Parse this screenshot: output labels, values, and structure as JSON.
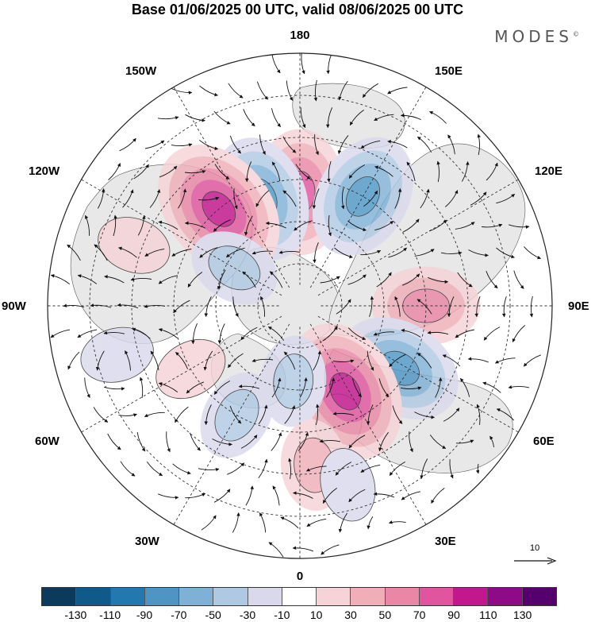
{
  "title": "Base 01/06/2025 00 UTC, valid 08/06/2025 00 UTC",
  "brand": "MODES",
  "brand_mark": "©",
  "longitude_labels": {
    "top": "180",
    "bottom": "0",
    "left": "90W",
    "right": "90E",
    "upper_left_1": "150W",
    "upper_left_2": "120W",
    "lower_left_1": "60W",
    "lower_left_2": "30W",
    "upper_right_1": "150E",
    "upper_right_2": "120E",
    "lower_right_1": "60E",
    "lower_right_2": "30E"
  },
  "reference_vector": {
    "label": "10",
    "icon": "arrow-right-icon"
  },
  "colorbar": {
    "ticks": [
      "-130",
      "-110",
      "-90",
      "-70",
      "-50",
      "-30",
      "-10",
      "10",
      "30",
      "50",
      "70",
      "90",
      "110",
      "130"
    ],
    "colors": [
      "#0b3a5c",
      "#0f5a8a",
      "#2478b0",
      "#4e95c4",
      "#7fb0d6",
      "#b0c9e3",
      "#dad9ec",
      "#ffffff",
      "#f6d3d6",
      "#f0aeb9",
      "#ea87a6",
      "#e0559e",
      "#c3178e",
      "#8f0a87",
      "#56006e"
    ]
  },
  "colors": {
    "land": "#e8e8e8",
    "ocean": "#ffffff",
    "coast": "#444444",
    "grid": "#333333"
  },
  "anomalies": [
    {
      "lon": 180,
      "colat": 27,
      "value": 90
    },
    {
      "lon": 200,
      "colat": 27,
      "value": -90
    },
    {
      "lon": 220,
      "colat": 30,
      "value": 110
    },
    {
      "lon": 240,
      "colat": 18,
      "value": -50
    },
    {
      "lon": 250,
      "colat": 42,
      "value": 30
    },
    {
      "lon": 150,
      "colat": 30,
      "value": -90
    },
    {
      "lon": 90,
      "colat": 30,
      "value": 70
    },
    {
      "lon": 58,
      "colat": 28,
      "value": -90
    },
    {
      "lon": 28,
      "colat": 23,
      "value": 110
    },
    {
      "lon": 355,
      "colat": 18,
      "value": -50
    },
    {
      "lon": 5,
      "colat": 38,
      "value": 50
    },
    {
      "lon": 330,
      "colat": 30,
      "value": -50
    },
    {
      "lon": 300,
      "colat": 30,
      "value": 30
    },
    {
      "lon": 285,
      "colat": 45,
      "value": -30
    },
    {
      "lon": 15,
      "colat": 44,
      "value": -30
    }
  ]
}
